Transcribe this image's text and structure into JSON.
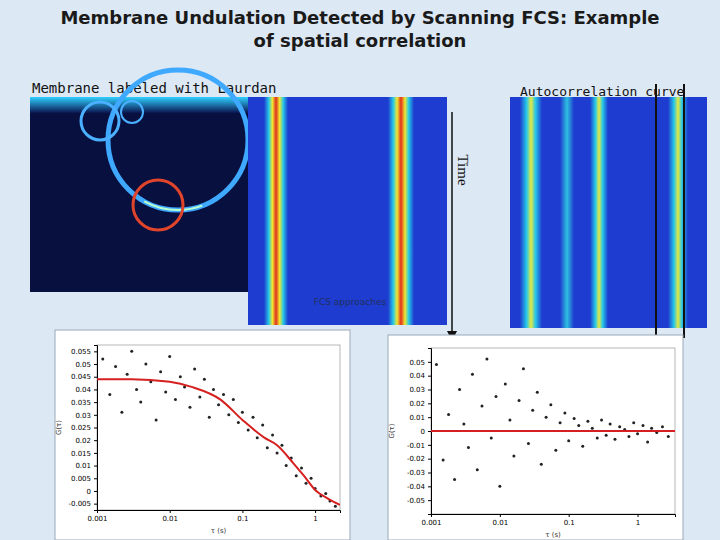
{
  "slide": {
    "title": [
      "Membrane Undulation Detected by Scanning FCS: Example",
      "of spatial correlation"
    ],
    "membrane_label": "Membrane labeled with Laurdan",
    "autocorrelation_label": "Autocorrelation curve",
    "time_label": "Time",
    "carpet_caption": "FCS approaches"
  },
  "chart_data": [
    {
      "type": "scatter",
      "log": "x",
      "x_label": "τ (s)",
      "y_label": "G(τ)",
      "xlim": [
        0.001,
        2.2
      ],
      "xticks": [
        0.001,
        0.01,
        0.1,
        1
      ],
      "ylim": [
        -0.0075,
        0.0575
      ],
      "yticks": [
        -0.005,
        0,
        0.005,
        0.01,
        0.015,
        0.02,
        0.025,
        0.03,
        0.035,
        0.04,
        0.045,
        0.05,
        0.055
      ],
      "series": [
        {
          "type": "scatter",
          "marker": "circle",
          "color": "#222222",
          "x": [
            0.0012,
            0.0015,
            0.0018,
            0.0022,
            0.0026,
            0.003,
            0.0035,
            0.004,
            0.0047,
            0.0055,
            0.0065,
            0.0075,
            0.0088,
            0.01,
            0.012,
            0.014,
            0.016,
            0.019,
            0.022,
            0.026,
            0.03,
            0.035,
            0.04,
            0.047,
            0.055,
            0.065,
            0.075,
            0.088,
            0.1,
            0.12,
            0.14,
            0.16,
            0.19,
            0.22,
            0.26,
            0.3,
            0.35,
            0.4,
            0.47,
            0.55,
            0.65,
            0.75,
            0.88,
            1.0,
            1.2,
            1.4,
            1.6,
            1.9
          ],
          "values": [
            0.052,
            0.038,
            0.049,
            0.031,
            0.046,
            0.055,
            0.04,
            0.035,
            0.05,
            0.043,
            0.028,
            0.047,
            0.039,
            0.053,
            0.036,
            0.045,
            0.041,
            0.033,
            0.048,
            0.037,
            0.044,
            0.029,
            0.04,
            0.034,
            0.038,
            0.03,
            0.036,
            0.027,
            0.031,
            0.024,
            0.029,
            0.021,
            0.026,
            0.017,
            0.022,
            0.015,
            0.018,
            0.01,
            0.013,
            0.006,
            0.009,
            0.003,
            0.005,
            0.001,
            -0.002,
            -0.001,
            -0.004,
            -0.006
          ]
        },
        {
          "type": "line",
          "line_style": "solid",
          "color": "#d62020",
          "x": [
            0.001,
            0.003,
            0.01,
            0.02,
            0.05,
            0.1,
            0.2,
            0.3,
            0.5,
            0.7,
            1,
            1.5,
            2.2
          ],
          "values": [
            0.044,
            0.044,
            0.043,
            0.041,
            0.036,
            0.028,
            0.021,
            0.018,
            0.011,
            0.006,
            0.0004,
            -0.003,
            -0.0055
          ]
        }
      ]
    },
    {
      "type": "scatter",
      "log": "x",
      "x_label": "τ (s)",
      "y_label": "G(τ)",
      "xlim": [
        0.001,
        3.5
      ],
      "xticks": [
        0.001,
        0.01,
        0.1,
        1
      ],
      "ylim": [
        -0.06,
        0.06
      ],
      "yticks": [
        -0.05,
        -0.04,
        -0.03,
        -0.02,
        -0.01,
        0,
        0.01,
        0.02,
        0.03,
        0.04,
        0.05
      ],
      "series": [
        {
          "type": "scatter",
          "marker": "circle",
          "color": "#222222",
          "x": [
            0.0012,
            0.0015,
            0.0018,
            0.0022,
            0.0026,
            0.003,
            0.0035,
            0.004,
            0.0047,
            0.0055,
            0.0065,
            0.0075,
            0.0088,
            0.01,
            0.012,
            0.014,
            0.016,
            0.019,
            0.022,
            0.026,
            0.03,
            0.035,
            0.04,
            0.047,
            0.055,
            0.065,
            0.075,
            0.088,
            0.1,
            0.12,
            0.14,
            0.16,
            0.19,
            0.22,
            0.26,
            0.3,
            0.35,
            0.4,
            0.47,
            0.55,
            0.65,
            0.75,
            0.88,
            1.0,
            1.2,
            1.4,
            1.6,
            1.9,
            2.3,
            2.8
          ],
          "values": [
            0.048,
            -0.021,
            0.012,
            -0.035,
            0.03,
            0.005,
            -0.012,
            0.041,
            -0.028,
            0.018,
            0.052,
            -0.005,
            0.025,
            -0.04,
            0.034,
            0.008,
            -0.018,
            0.022,
            0.045,
            -0.009,
            0.015,
            0.028,
            -0.024,
            0.01,
            0.019,
            -0.014,
            0.006,
            0.013,
            -0.007,
            0.009,
            0.004,
            -0.011,
            0.007,
            0.002,
            -0.005,
            0.008,
            -0.003,
            0.005,
            -0.006,
            0.003,
            0.001,
            -0.004,
            0.006,
            -0.002,
            0.004,
            -0.008,
            0.002,
            -0.001,
            0.003,
            -0.004
          ]
        },
        {
          "type": "line",
          "line_style": "solid",
          "color": "#d62020",
          "x": [
            0.001,
            3.5
          ],
          "values": [
            0,
            0
          ]
        }
      ]
    }
  ]
}
